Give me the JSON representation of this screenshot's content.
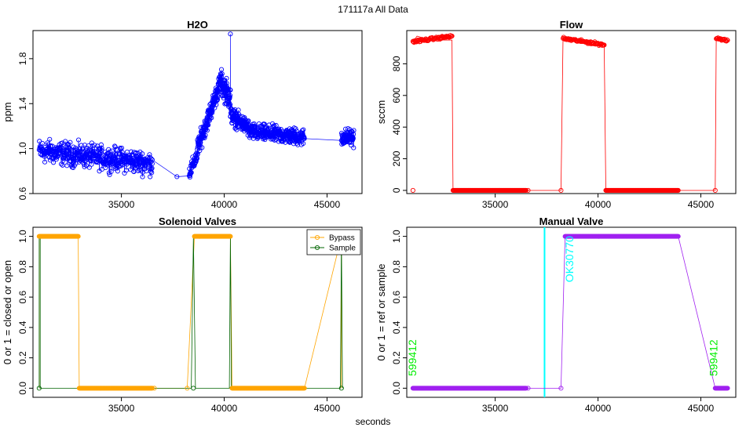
{
  "figure": {
    "title": "171117a   All Data",
    "xlabel": "seconds"
  },
  "colors": {
    "h2o": "#0000ff",
    "flow": "#ff0000",
    "bypass": "#ffa500",
    "sample": "#006400",
    "manual": "#a020f0",
    "marker": "#00ffff",
    "label_green": "#00ee00",
    "label_cyan": "#00ffff"
  },
  "chart_data": [
    {
      "id": "h2o",
      "type": "scatter",
      "title": "H2O",
      "ylabel": "ppm",
      "xlabel": "",
      "xlim": [
        30700,
        46700
      ],
      "ylim": [
        0.6,
        2.05
      ],
      "xticks": [
        35000,
        40000,
        45000
      ],
      "yticks": [
        0.6,
        1.0,
        1.4,
        1.8
      ],
      "ytick_labels": [
        "0.6",
        "1.0",
        "1.4",
        "1.8"
      ],
      "segments": [
        {
          "x0": 31000,
          "x1": 36500,
          "mean_start": 0.98,
          "mean_end": 0.87,
          "noise": 0.11,
          "n": 420
        },
        {
          "x0": 38300,
          "x1": 38700,
          "mean_start": 0.78,
          "mean_end": 0.95,
          "noise": 0.07,
          "n": 40
        },
        {
          "x0": 38700,
          "x1": 39800,
          "mean_start": 1.0,
          "mean_end": 1.58,
          "noise": 0.09,
          "n": 150
        },
        {
          "x0": 39800,
          "x1": 40300,
          "mean_start": 1.6,
          "mean_end": 1.45,
          "noise": 0.12,
          "n": 70
        },
        {
          "x0": 40300,
          "x1": 41200,
          "mean_start": 1.3,
          "mean_end": 1.18,
          "noise": 0.08,
          "n": 110
        },
        {
          "x0": 41200,
          "x1": 43900,
          "mean_start": 1.15,
          "mean_end": 1.1,
          "noise": 0.08,
          "n": 260
        },
        {
          "x0": 45700,
          "x1": 46300,
          "mean_start": 1.1,
          "mean_end": 1.1,
          "noise": 0.08,
          "n": 70
        }
      ],
      "isolated": [
        {
          "x": 37700,
          "y": 0.75
        },
        {
          "x": 40300,
          "y": 2.02
        },
        {
          "x": 36500,
          "y": 0.9
        }
      ]
    },
    {
      "id": "flow",
      "type": "line",
      "title": "Flow",
      "ylabel": "sccm",
      "xlabel": "",
      "xlim": [
        30700,
        46700
      ],
      "ylim": [
        -20,
        1010
      ],
      "xticks": [
        35000,
        40000,
        45000
      ],
      "yticks": [
        0,
        200,
        400,
        600,
        800
      ],
      "ytick_labels": [
        "0",
        "200",
        "400",
        "600",
        "800"
      ],
      "series": [
        {
          "name": "flow",
          "points": [
            [
              31000,
              940
            ],
            [
              31200,
              975
            ],
            [
              31600,
              960
            ],
            [
              32500,
              950
            ],
            [
              32900,
              950
            ],
            [
              32950,
              0
            ],
            [
              36600,
              0
            ],
            [
              38200,
              0
            ],
            [
              38300,
              960
            ],
            [
              38800,
              955
            ],
            [
              39600,
              950
            ],
            [
              40300,
              930
            ],
            [
              40380,
              0
            ],
            [
              43900,
              0
            ],
            [
              45700,
              0
            ],
            [
              45750,
              960
            ],
            [
              46300,
              950
            ]
          ]
        }
      ],
      "low_points": [
        {
          "x": 31000,
          "y": 0
        },
        {
          "x": 36600,
          "y": 0
        },
        {
          "x": 38200,
          "y": 0
        },
        {
          "x": 45700,
          "y": 0
        }
      ],
      "dense_ranges": [
        {
          "x0": 31000,
          "x1": 32900,
          "y0": 940,
          "y1": 975
        },
        {
          "x0": 32950,
          "x1": 36500,
          "y0": 0,
          "y1": 0
        },
        {
          "x0": 38300,
          "x1": 40300,
          "y0": 960,
          "y1": 920
        },
        {
          "x0": 40380,
          "x1": 43900,
          "y0": 0,
          "y1": 0
        },
        {
          "x0": 45750,
          "x1": 46300,
          "y0": 960,
          "y1": 950
        }
      ]
    },
    {
      "id": "solenoid",
      "type": "line",
      "title": "Solenoid Valves",
      "ylabel": "0 or 1 = closed or open",
      "xlabel": "",
      "xlim": [
        30700,
        46700
      ],
      "ylim": [
        -0.06,
        1.06
      ],
      "xticks": [
        35000,
        40000,
        45000
      ],
      "yticks": [
        0.0,
        0.2,
        0.4,
        0.6,
        0.8,
        1.0
      ],
      "ytick_labels": [
        "0.0",
        "0.2",
        "0.4",
        "0.6",
        "0.8",
        "1.0"
      ],
      "legend": {
        "position": "top-right",
        "entries": [
          "Bypass",
          "Sample"
        ]
      },
      "series": [
        {
          "name": "Bypass",
          "points": [
            [
              31000,
              0
            ],
            [
              31000,
              1
            ],
            [
              32900,
              1
            ],
            [
              32950,
              0
            ],
            [
              36600,
              0
            ],
            [
              38200,
              0
            ],
            [
              38550,
              1
            ],
            [
              40300,
              1
            ],
            [
              40380,
              0
            ],
            [
              43900,
              0
            ],
            [
              45700,
              1
            ],
            [
              45700,
              0
            ]
          ]
        },
        {
          "name": "Sample",
          "points": [
            [
              31000,
              0
            ],
            [
              31000,
              1
            ],
            [
              31050,
              1
            ],
            [
              31050,
              0
            ],
            [
              38400,
              0
            ],
            [
              38500,
              1
            ],
            [
              38600,
              0
            ],
            [
              40250,
              0
            ],
            [
              40300,
              1
            ],
            [
              40350,
              0
            ],
            [
              45650,
              0
            ],
            [
              45700,
              1
            ],
            [
              45750,
              0
            ]
          ]
        }
      ],
      "dense_ranges": [
        {
          "name": "Bypass",
          "x0": 31000,
          "x1": 32900,
          "y": 1
        },
        {
          "name": "Bypass",
          "x0": 32950,
          "x1": 36500,
          "y": 0
        },
        {
          "name": "Bypass",
          "x0": 38550,
          "x1": 40300,
          "y": 1
        },
        {
          "name": "Bypass",
          "x0": 40380,
          "x1": 43900,
          "y": 0
        }
      ],
      "sample_points": [
        {
          "x": 31000,
          "y": 0
        },
        {
          "x": 38500,
          "y": 0
        },
        {
          "x": 45700,
          "y": 0
        }
      ]
    },
    {
      "id": "manual",
      "type": "line",
      "title": "Manual Valve",
      "ylabel": "0 or 1 = ref or sample",
      "xlabel": "",
      "xlim": [
        30700,
        46700
      ],
      "ylim": [
        -0.06,
        1.06
      ],
      "xticks": [
        35000,
        40000,
        45000
      ],
      "yticks": [
        0.0,
        0.2,
        0.4,
        0.6,
        0.8,
        1.0
      ],
      "ytick_labels": [
        "0.0",
        "0.2",
        "0.4",
        "0.6",
        "0.8",
        "1.0"
      ],
      "series": [
        {
          "name": "Manual",
          "points": [
            [
              31000,
              0
            ],
            [
              36500,
              0
            ],
            [
              36600,
              0
            ],
            [
              38200,
              0
            ],
            [
              38400,
              1
            ],
            [
              43900,
              1
            ],
            [
              45700,
              0
            ],
            [
              46300,
              0
            ]
          ]
        }
      ],
      "dense_ranges": [
        {
          "x0": 31000,
          "x1": 36500,
          "y": 0
        },
        {
          "x0": 38400,
          "x1": 43900,
          "y": 1
        },
        {
          "x0": 45700,
          "x1": 46300,
          "y": 0
        }
      ],
      "open_points": [
        {
          "x": 36600,
          "y": 0
        },
        {
          "x": 38200,
          "y": 0
        }
      ],
      "vline": 37400,
      "annotations": [
        {
          "text": "599412",
          "x": 31150,
          "y": 0.2,
          "color": "green"
        },
        {
          "text": "OK30770",
          "x": 38800,
          "y": 0.85,
          "color": "cyan"
        },
        {
          "text": "599412",
          "x": 45800,
          "y": 0.2,
          "color": "green"
        }
      ]
    }
  ]
}
